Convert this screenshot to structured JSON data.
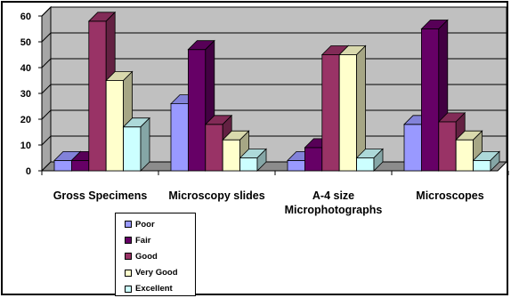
{
  "chart_data": {
    "type": "bar",
    "style": "3d-clustered-column",
    "categories": [
      "Gross Specimens",
      "Microscopy slides",
      "A-4 size Microphotographs",
      "Microscopes"
    ],
    "category_lines": [
      [
        "Gross Specimens"
      ],
      [
        "Microscopy slides"
      ],
      [
        "A-4 size",
        "Microphotographs"
      ],
      [
        "Microscopes"
      ]
    ],
    "series": [
      {
        "name": "Poor",
        "values": [
          4,
          26,
          4,
          18
        ],
        "color": "#9999ff"
      },
      {
        "name": "Fair",
        "values": [
          4,
          47,
          9,
          55
        ],
        "color": "#660066"
      },
      {
        "name": "Good",
        "values": [
          58,
          18,
          45,
          19
        ],
        "color": "#993366"
      },
      {
        "name": "Very Good",
        "values": [
          35,
          12,
          45,
          12
        ],
        "color": "#ffffcc"
      },
      {
        "name": "Excellent",
        "values": [
          17,
          5,
          5,
          4
        ],
        "color": "#ccffff"
      }
    ],
    "ylim": [
      0,
      60
    ],
    "yticks": [
      0,
      10,
      20,
      30,
      40,
      50,
      60
    ],
    "grid": true,
    "legend": "bottom-left",
    "wall_color": "#c0c0c0"
  }
}
